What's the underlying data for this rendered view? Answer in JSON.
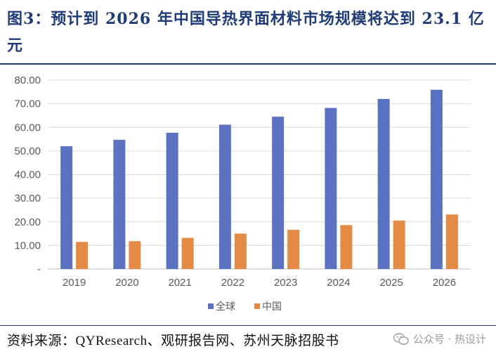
{
  "figure": {
    "title": "图3：预计到 2026 年中国导热界面材料市场规模将达到 23.1 亿元",
    "source": "资料来源：QYResearch、观研报告网、苏州天脉招股书",
    "watermark": "公众号 · 热设计"
  },
  "chart_data": {
    "type": "bar",
    "title": "",
    "xlabel": "",
    "ylabel": "",
    "categories": [
      "2019",
      "2020",
      "2021",
      "2022",
      "2023",
      "2024",
      "2025",
      "2026"
    ],
    "series": [
      {
        "name": "全球",
        "color": "#5b72c3",
        "values": [
          52.0,
          54.7,
          57.7,
          61.1,
          64.5,
          68.2,
          72.0,
          75.9
        ]
      },
      {
        "name": "中国",
        "color": "#e48a44",
        "values": [
          11.5,
          11.8,
          13.2,
          15.0,
          16.6,
          18.6,
          20.5,
          23.1
        ]
      }
    ],
    "ylim": [
      0,
      80
    ],
    "yticks": [
      0,
      10,
      20,
      30,
      40,
      50,
      60,
      70,
      80
    ],
    "ytick_labels": [
      "-",
      "10.00",
      "20.00",
      "30.00",
      "40.00",
      "50.00",
      "60.00",
      "70.00",
      "80.00"
    ],
    "grid": true,
    "legend": "bottom-center"
  }
}
